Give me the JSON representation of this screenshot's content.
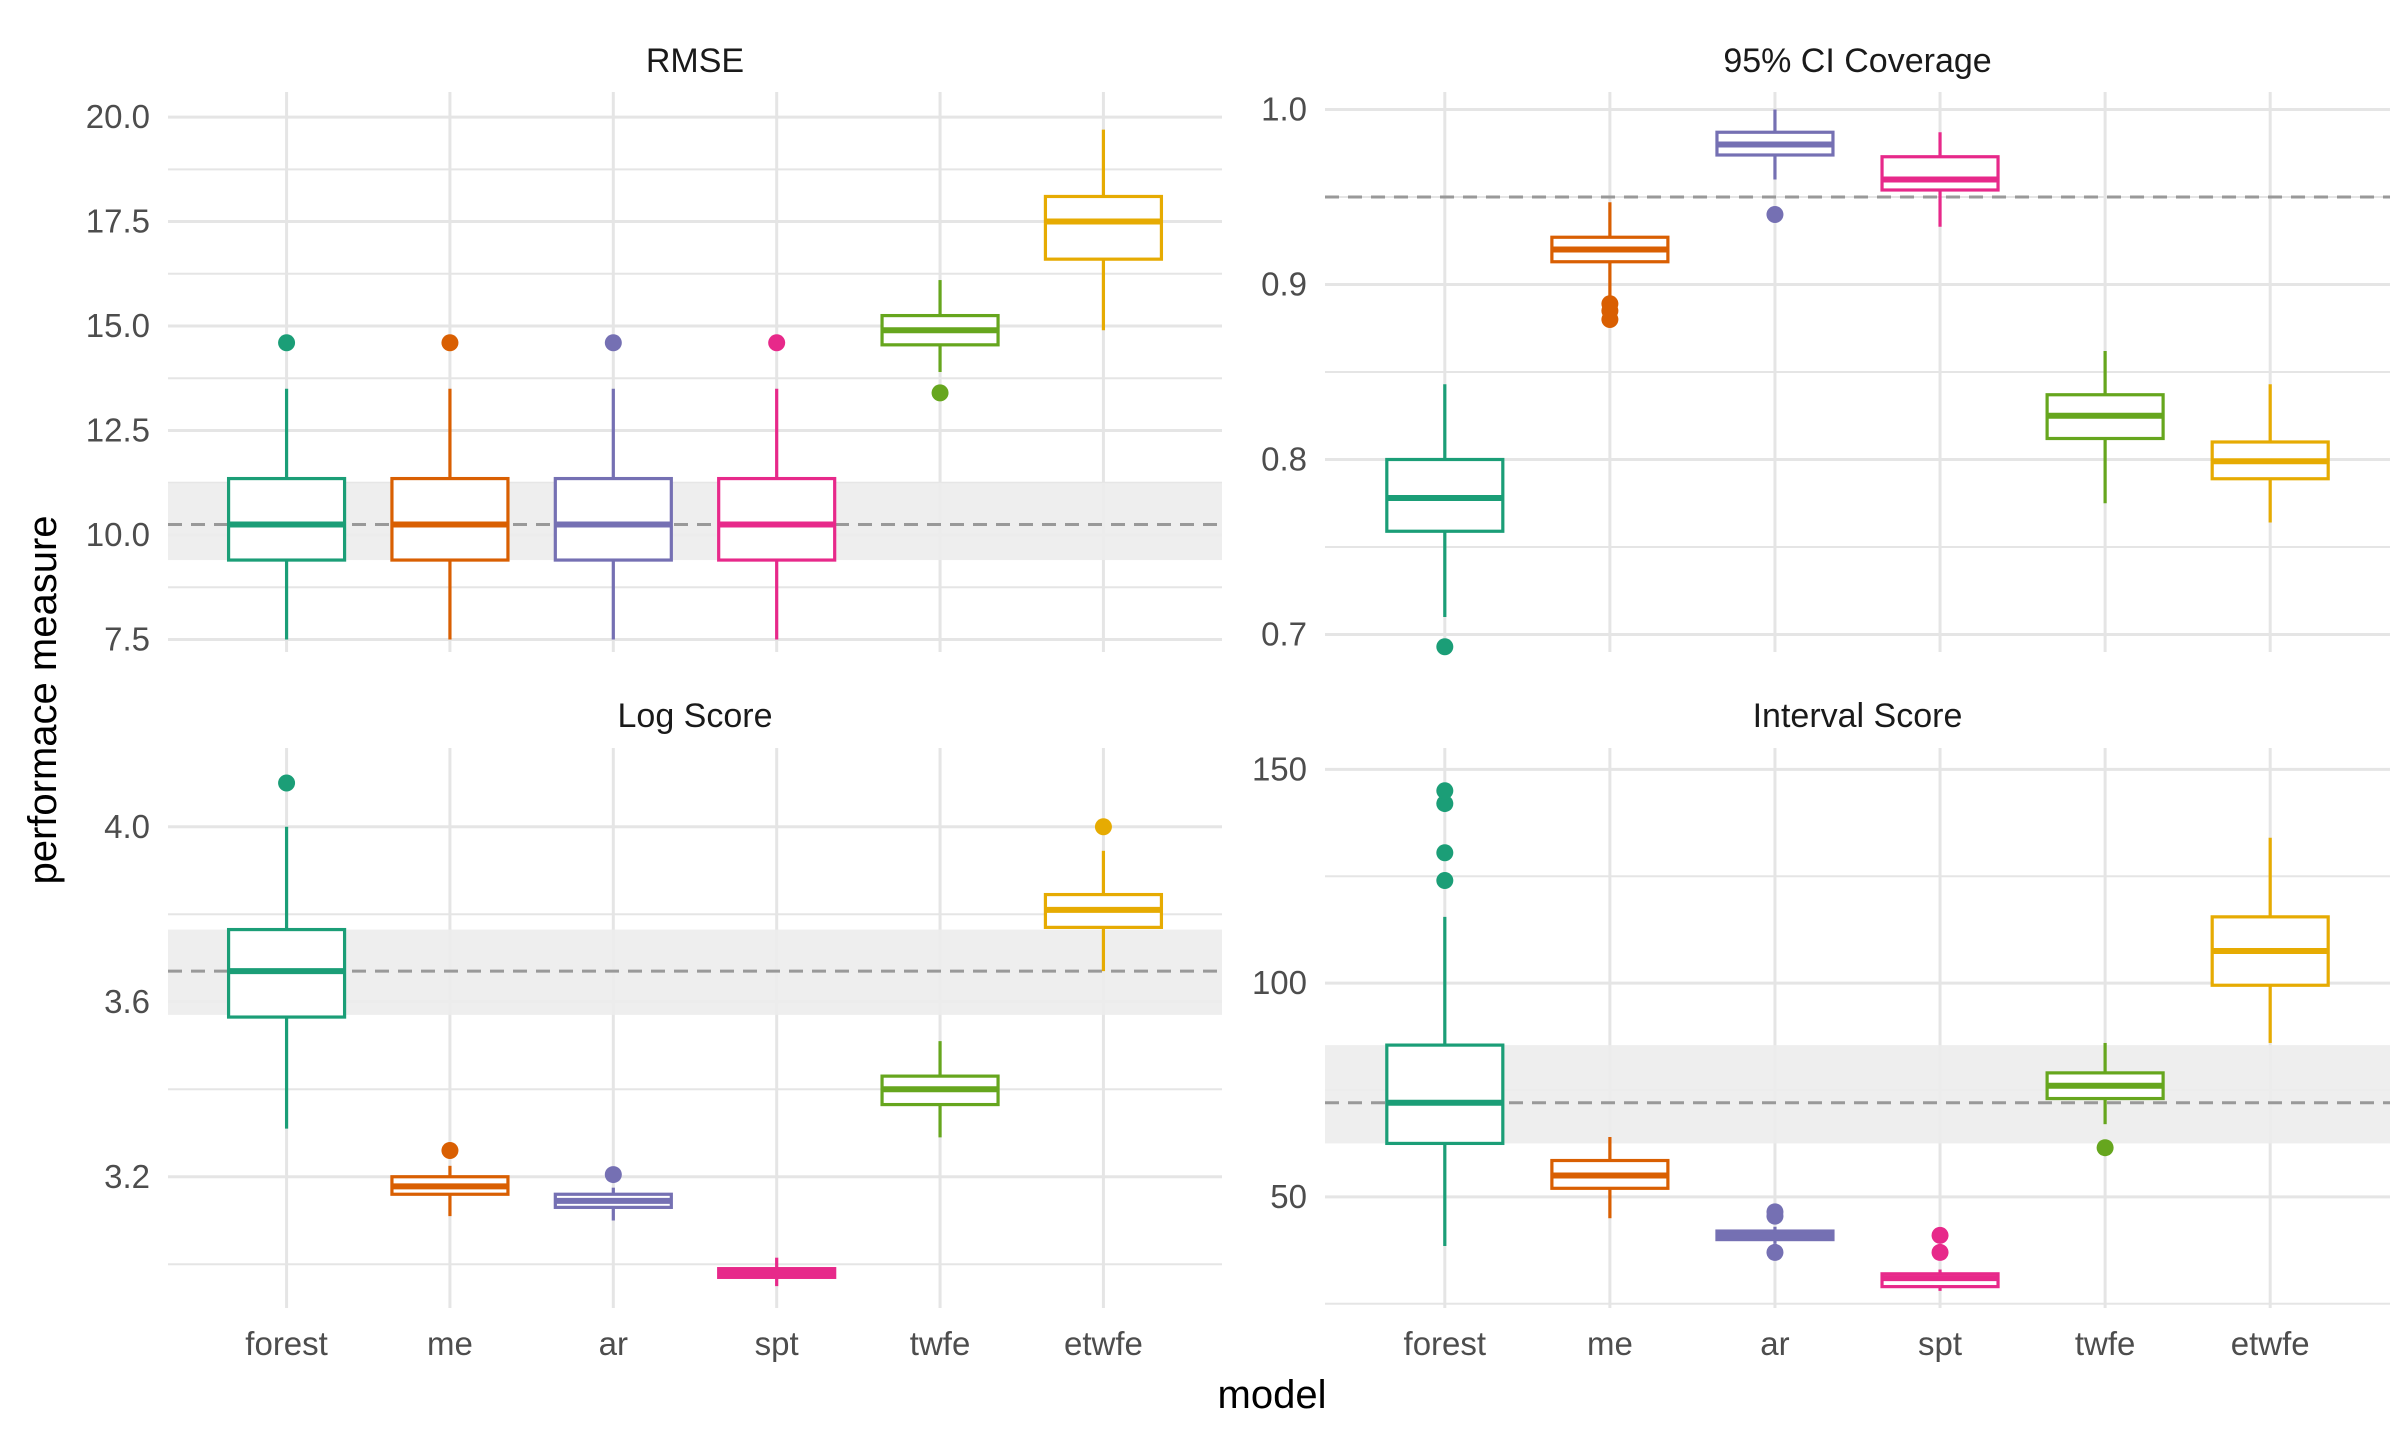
{
  "chart_data": {
    "type": "boxplot",
    "xlabel": "model",
    "ylabel": "performace measure",
    "categories": [
      "forest",
      "me",
      "ar",
      "spt",
      "twfe",
      "etwfe"
    ],
    "colors": {
      "forest": "#1b9e77",
      "me": "#d95f02",
      "ar": "#7570b3",
      "spt": "#e7298a",
      "twfe": "#66a61e",
      "etwfe": "#e6ab02"
    },
    "panels": [
      {
        "title": "RMSE",
        "ylim": [
          7.2,
          20.6
        ],
        "yticks": [
          7.5,
          10.0,
          12.5,
          15.0,
          17.5,
          20.0
        ],
        "ytick_labels": [
          "7.5",
          "10.0",
          "12.5",
          "15.0",
          "17.5",
          "20.0"
        ],
        "reference": {
          "line": 10.25,
          "band": [
            9.4,
            11.25
          ]
        },
        "boxes": [
          {
            "model": "forest",
            "whisker_low": 7.5,
            "q1": 9.4,
            "median": 10.25,
            "q3": 11.35,
            "whisker_high": 13.5,
            "outliers": [
              14.6
            ]
          },
          {
            "model": "me",
            "whisker_low": 7.5,
            "q1": 9.4,
            "median": 10.25,
            "q3": 11.35,
            "whisker_high": 13.5,
            "outliers": [
              14.6
            ]
          },
          {
            "model": "ar",
            "whisker_low": 7.5,
            "q1": 9.4,
            "median": 10.25,
            "q3": 11.35,
            "whisker_high": 13.5,
            "outliers": [
              14.6
            ]
          },
          {
            "model": "spt",
            "whisker_low": 7.5,
            "q1": 9.4,
            "median": 10.25,
            "q3": 11.35,
            "whisker_high": 13.5,
            "outliers": [
              14.6
            ]
          },
          {
            "model": "twfe",
            "whisker_low": 13.9,
            "q1": 14.55,
            "median": 14.9,
            "q3": 15.25,
            "whisker_high": 16.1,
            "outliers": [
              13.4
            ]
          },
          {
            "model": "etwfe",
            "whisker_low": 14.9,
            "q1": 16.6,
            "median": 17.5,
            "q3": 18.1,
            "whisker_high": 19.7,
            "outliers": []
          }
        ]
      },
      {
        "title": "95% CI Coverage",
        "ylim": [
          0.69,
          1.01
        ],
        "yticks": [
          0.7,
          0.8,
          0.9,
          1.0
        ],
        "ytick_labels": [
          "0.7",
          "0.8",
          "0.9",
          "1.0"
        ],
        "reference": {
          "line": 0.95
        },
        "boxes": [
          {
            "model": "forest",
            "whisker_low": 0.71,
            "q1": 0.759,
            "median": 0.778,
            "q3": 0.8,
            "whisker_high": 0.843,
            "outliers": [
              0.693
            ]
          },
          {
            "model": "me",
            "whisker_low": 0.893,
            "q1": 0.913,
            "median": 0.92,
            "q3": 0.927,
            "whisker_high": 0.947,
            "outliers": [
              0.889,
              0.885,
              0.88
            ]
          },
          {
            "model": "ar",
            "whisker_low": 0.96,
            "q1": 0.974,
            "median": 0.98,
            "q3": 0.987,
            "whisker_high": 1.0,
            "outliers": [
              0.94
            ]
          },
          {
            "model": "spt",
            "whisker_low": 0.933,
            "q1": 0.954,
            "median": 0.96,
            "q3": 0.973,
            "whisker_high": 0.987,
            "outliers": []
          },
          {
            "model": "twfe",
            "whisker_low": 0.775,
            "q1": 0.812,
            "median": 0.825,
            "q3": 0.837,
            "whisker_high": 0.862,
            "outliers": []
          },
          {
            "model": "etwfe",
            "whisker_low": 0.764,
            "q1": 0.789,
            "median": 0.799,
            "q3": 0.81,
            "whisker_high": 0.843,
            "outliers": []
          }
        ]
      },
      {
        "title": "Log Score",
        "ylim": [
          2.9,
          4.18
        ],
        "yticks": [
          3.2,
          3.6,
          4.0
        ],
        "ytick_labels": [
          "3.2",
          "3.6",
          "4.0"
        ],
        "reference": {
          "line": 3.67,
          "band": [
            3.57,
            3.765
          ]
        },
        "boxes": [
          {
            "model": "forest",
            "whisker_low": 3.31,
            "q1": 3.565,
            "median": 3.67,
            "q3": 3.765,
            "whisker_high": 4.0,
            "outliers": [
              4.1
            ]
          },
          {
            "model": "me",
            "whisker_low": 3.11,
            "q1": 3.16,
            "median": 3.178,
            "q3": 3.2,
            "whisker_high": 3.225,
            "outliers": [
              3.26
            ]
          },
          {
            "model": "ar",
            "whisker_low": 3.1,
            "q1": 3.13,
            "median": 3.145,
            "q3": 3.16,
            "whisker_high": 3.175,
            "outliers": [
              3.205
            ]
          },
          {
            "model": "spt",
            "whisker_low": 2.95,
            "q1": 2.97,
            "median": 2.98,
            "q3": 2.99,
            "whisker_high": 3.015,
            "outliers": []
          },
          {
            "model": "twfe",
            "whisker_low": 3.29,
            "q1": 3.365,
            "median": 3.4,
            "q3": 3.43,
            "whisker_high": 3.51,
            "outliers": []
          },
          {
            "model": "etwfe",
            "whisker_low": 3.67,
            "q1": 3.77,
            "median": 3.81,
            "q3": 3.845,
            "whisker_high": 3.945,
            "outliers": [
              4.0
            ]
          }
        ]
      },
      {
        "title": "Interval Score",
        "ylim": [
          24,
          155
        ],
        "yticks": [
          50,
          100,
          150
        ],
        "ytick_labels": [
          "50",
          "100",
          "150"
        ],
        "reference": {
          "line": 72,
          "band": [
            62.5,
            85.5
          ]
        },
        "boxes": [
          {
            "model": "forest",
            "whisker_low": 38.5,
            "q1": 62.5,
            "median": 72,
            "q3": 85.5,
            "whisker_high": 115.5,
            "outliers": [
              124,
              130.5,
              142,
              145
            ]
          },
          {
            "model": "me",
            "whisker_low": 45,
            "q1": 52,
            "median": 55,
            "q3": 58.5,
            "whisker_high": 64,
            "outliers": []
          },
          {
            "model": "ar",
            "whisker_low": 39,
            "q1": 40,
            "median": 41,
            "q3": 42,
            "whisker_high": 43,
            "outliers": [
              37,
              45.5,
              46.5
            ]
          },
          {
            "model": "spt",
            "whisker_low": 28,
            "q1": 29,
            "median": 31,
            "q3": 32,
            "whisker_high": 33,
            "outliers": [
              37,
              41
            ]
          },
          {
            "model": "twfe",
            "whisker_low": 67,
            "q1": 73,
            "median": 76,
            "q3": 79,
            "whisker_high": 86,
            "outliers": [
              61.5
            ]
          },
          {
            "model": "etwfe",
            "whisker_low": 86,
            "q1": 99.5,
            "median": 107.5,
            "q3": 115.5,
            "whisker_high": 134,
            "outliers": []
          }
        ]
      }
    ]
  }
}
